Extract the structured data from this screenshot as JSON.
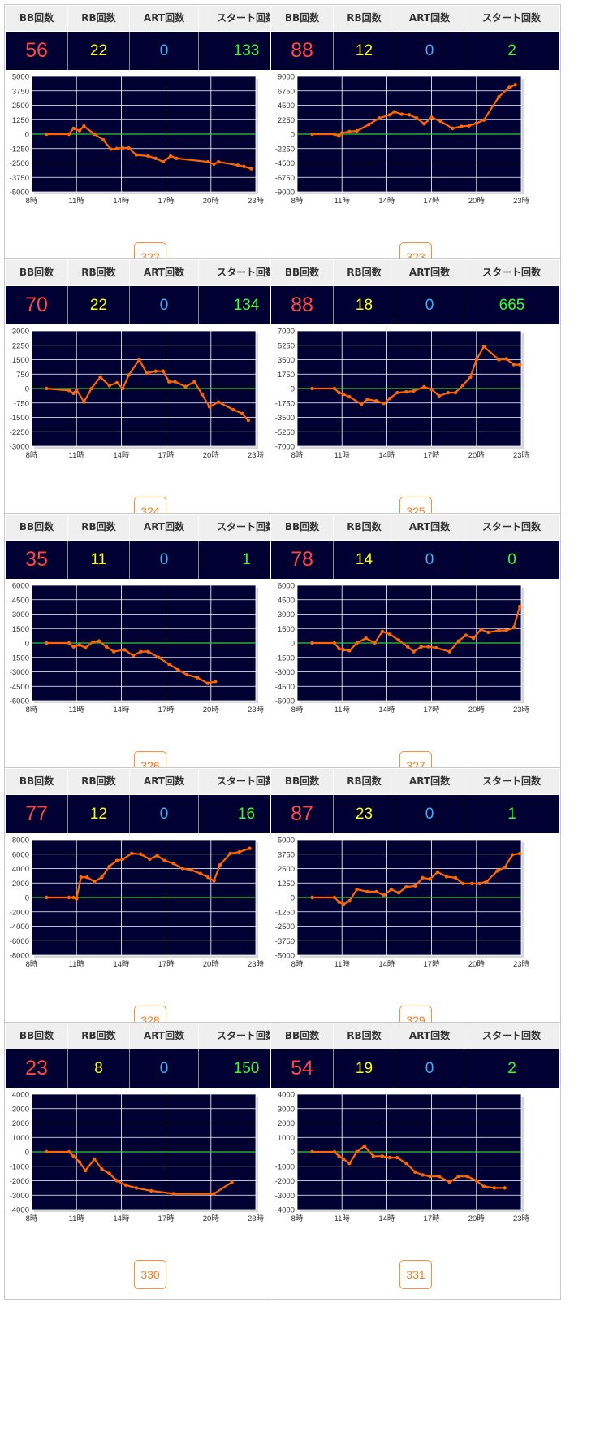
{
  "headers": {
    "bb": "BB回数",
    "rb": "RB回数",
    "art": "ART回数",
    "start": "スタート回数"
  },
  "colors": {
    "bb": "#ff4747",
    "rb": "#ffff00",
    "art": "#33b5ff",
    "start": "#33ff33",
    "line": "#ff6600",
    "zero_line": "#33cc33",
    "plot_bg": "#000033",
    "button": "#ff7a1a"
  },
  "x_ticks": [
    "8時",
    "11時",
    "14時",
    "17時",
    "20時",
    "23時"
  ],
  "chart_data": [
    {
      "type": "line",
      "machine": "322",
      "bb": "56",
      "rb": "22",
      "art": "0",
      "start": "133",
      "ylim": [
        -5000,
        5000
      ],
      "yticks": [
        5000,
        3750,
        2500,
        1250,
        0,
        -1250,
        -2500,
        -3750,
        -5000
      ],
      "x": [
        9,
        10.5,
        10.8,
        11.2,
        11.5,
        12.2,
        12.8,
        13.3,
        13.7,
        14.1,
        14.5,
        15,
        15.8,
        16.3,
        16.8,
        17.3,
        17.7,
        19.8,
        20.2,
        20.5,
        21.8,
        22.2,
        22.7
      ],
      "y": [
        0,
        0,
        500,
        300,
        700,
        0,
        -500,
        -1300,
        -1250,
        -1200,
        -1200,
        -1800,
        -1900,
        -2100,
        -2400,
        -1900,
        -2100,
        -2400,
        -2600,
        -2400,
        -2700,
        -2800,
        -3000
      ]
    },
    {
      "type": "line",
      "machine": "323",
      "bb": "88",
      "rb": "12",
      "art": "0",
      "start": "2",
      "ylim": [
        -9000,
        9000
      ],
      "yticks": [
        9000,
        6750,
        4500,
        2250,
        0,
        -2250,
        -4500,
        -6750,
        -9000
      ],
      "x": [
        9,
        10.5,
        10.8,
        11,
        11.5,
        12,
        12.8,
        13.5,
        14.2,
        14.5,
        15,
        15.5,
        16,
        16.5,
        17,
        17.6,
        18.4,
        19,
        19.5,
        20,
        20.5,
        21.5,
        22.2,
        22.6
      ],
      "y": [
        0,
        0,
        -300,
        200,
        400,
        500,
        1500,
        2500,
        3000,
        3500,
        3100,
        3000,
        2500,
        1600,
        2600,
        2000,
        900,
        1200,
        1300,
        1700,
        2200,
        5800,
        7300,
        7700
      ]
    },
    {
      "type": "line",
      "machine": "324",
      "bb": "70",
      "rb": "22",
      "art": "0",
      "start": "134",
      "ylim": [
        -3000,
        3000
      ],
      "yticks": [
        3000,
        2250,
        1500,
        750,
        0,
        -750,
        -1500,
        -2250,
        -3000
      ],
      "x": [
        9,
        10.5,
        10.8,
        11,
        11.5,
        12,
        12.6,
        13.2,
        13.7,
        14.1,
        14.5,
        15.2,
        15.7,
        16.3,
        16.8,
        17.2,
        17.6,
        18.3,
        18.9,
        19.4,
        19.9,
        20.5,
        21.5,
        22.1,
        22.5
      ],
      "y": [
        0,
        -100,
        -250,
        -50,
        -700,
        0,
        600,
        150,
        300,
        0,
        700,
        1500,
        800,
        900,
        900,
        350,
        350,
        100,
        350,
        -300,
        -950,
        -700,
        -1100,
        -1300,
        -1650
      ]
    },
    {
      "type": "line",
      "machine": "325",
      "bb": "88",
      "rb": "18",
      "art": "0",
      "start": "665",
      "ylim": [
        -7000,
        7000
      ],
      "yticks": [
        7000,
        5250,
        3500,
        1750,
        0,
        -1750,
        -3500,
        -5250,
        -7000
      ],
      "x": [
        9,
        10.5,
        10.8,
        11.1,
        11.5,
        12.3,
        12.7,
        13.3,
        13.8,
        14.2,
        14.7,
        15.3,
        15.8,
        16.5,
        17,
        17.5,
        18.1,
        18.6,
        19.1,
        19.6,
        20,
        20.5,
        21.5,
        22,
        22.5,
        22.9
      ],
      "y": [
        0,
        0,
        -500,
        -700,
        -1000,
        -1900,
        -1300,
        -1500,
        -1800,
        -1200,
        -500,
        -400,
        -300,
        200,
        -100,
        -900,
        -500,
        -500,
        400,
        1400,
        3500,
        5100,
        3500,
        3600,
        2900,
        2900
      ]
    },
    {
      "type": "line",
      "machine": "326",
      "bb": "35",
      "rb": "11",
      "art": "0",
      "start": "1",
      "ylim": [
        -6000,
        6000
      ],
      "yticks": [
        6000,
        4500,
        3000,
        1500,
        0,
        -1500,
        -3000,
        -4500,
        -6000
      ],
      "x": [
        9,
        10.5,
        10.8,
        11.2,
        11.6,
        12.1,
        12.5,
        13,
        13.5,
        14.2,
        14.8,
        15.3,
        15.8,
        16.5,
        17.2,
        17.8,
        18.4,
        19.1,
        19.8,
        20.3
      ],
      "y": [
        0,
        0,
        -400,
        -200,
        -500,
        100,
        200,
        -400,
        -900,
        -700,
        -1300,
        -900,
        -900,
        -1500,
        -2200,
        -2800,
        -3300,
        -3600,
        -4200,
        -4000
      ]
    },
    {
      "type": "line",
      "machine": "327",
      "bb": "78",
      "rb": "14",
      "art": "0",
      "start": "0",
      "ylim": [
        -6000,
        6000
      ],
      "yticks": [
        6000,
        4500,
        3000,
        1500,
        0,
        -1500,
        -3000,
        -4500,
        -6000
      ],
      "x": [
        9,
        10.5,
        10.8,
        11.1,
        11.5,
        12,
        12.6,
        13.2,
        13.7,
        14.2,
        14.8,
        15.4,
        15.8,
        16.3,
        16.8,
        17.3,
        18.2,
        18.8,
        19.3,
        19.8,
        20.3,
        20.8,
        21.5,
        22,
        22.5,
        22.9
      ],
      "y": [
        0,
        0,
        -600,
        -700,
        -800,
        0,
        500,
        0,
        1200,
        900,
        300,
        -400,
        -900,
        -400,
        -400,
        -500,
        -900,
        200,
        800,
        500,
        1400,
        1100,
        1300,
        1300,
        1600,
        3800
      ]
    },
    {
      "type": "line",
      "machine": "328",
      "bb": "77",
      "rb": "12",
      "art": "0",
      "start": "16",
      "ylim": [
        -8000,
        8000
      ],
      "yticks": [
        8000,
        6000,
        4000,
        2000,
        0,
        -2000,
        -4000,
        -6000,
        -8000
      ],
      "x": [
        9,
        10.5,
        10.8,
        11,
        11.3,
        11.7,
        12.2,
        12.7,
        13.2,
        13.7,
        14.1,
        14.7,
        15.3,
        15.9,
        16.4,
        16.9,
        17.5,
        18.1,
        18.7,
        19.3,
        19.8,
        20.2,
        20.6,
        21.3,
        21.9,
        22.6
      ],
      "y": [
        0,
        0,
        0,
        -200,
        2800,
        2800,
        2200,
        2800,
        4300,
        5100,
        5300,
        6100,
        6000,
        5300,
        5800,
        5100,
        4700,
        4000,
        3800,
        3300,
        2800,
        2300,
        4500,
        6100,
        6300,
        6800
      ]
    },
    {
      "type": "line",
      "machine": "329",
      "bb": "87",
      "rb": "23",
      "art": "0",
      "start": "1",
      "ylim": [
        -5000,
        5000
      ],
      "yticks": [
        5000,
        3750,
        2500,
        1250,
        0,
        -1250,
        -2500,
        -3750,
        -5000
      ],
      "x": [
        9,
        10.5,
        10.8,
        11.1,
        11.5,
        12,
        12.7,
        13.3,
        13.8,
        14.3,
        14.8,
        15.3,
        15.9,
        16.4,
        16.9,
        17.4,
        18,
        18.6,
        19.1,
        19.7,
        20.2,
        20.7,
        21.4,
        21.9,
        22.4,
        22.9
      ],
      "y": [
        0,
        0,
        -400,
        -600,
        -300,
        700,
        500,
        500,
        200,
        700,
        400,
        900,
        1000,
        1700,
        1600,
        2200,
        1800,
        1700,
        1200,
        1200,
        1200,
        1400,
        2300,
        2600,
        3700,
        3800
      ]
    },
    {
      "type": "line",
      "machine": "330",
      "bb": "23",
      "rb": "8",
      "art": "0",
      "start": "150",
      "ylim": [
        -4000,
        4000
      ],
      "yticks": [
        4000,
        3000,
        2000,
        1000,
        0,
        -1000,
        -2000,
        -3000,
        -4000
      ],
      "x": [
        9,
        10.5,
        10.8,
        11.2,
        11.6,
        12.2,
        12.7,
        13.2,
        13.7,
        14.3,
        15,
        16,
        17.5,
        20.2,
        21.4
      ],
      "y": [
        0,
        0,
        -300,
        -700,
        -1300,
        -500,
        -1200,
        -1500,
        -2000,
        -2300,
        -2500,
        -2700,
        -2900,
        -2900,
        -2100
      ]
    },
    {
      "type": "line",
      "machine": "331",
      "bb": "54",
      "rb": "19",
      "art": "0",
      "start": "2",
      "ylim": [
        -4000,
        4000
      ],
      "yticks": [
        4000,
        3000,
        2000,
        1000,
        0,
        -1000,
        -2000,
        -3000,
        -4000
      ],
      "x": [
        9,
        10.5,
        10.8,
        11.1,
        11.5,
        12,
        12.5,
        13.1,
        13.7,
        14.2,
        14.7,
        15.3,
        15.9,
        16.4,
        16.9,
        17.5,
        18.2,
        18.8,
        19.4,
        20,
        20.5,
        21.2,
        21.9
      ],
      "y": [
        0,
        0,
        -300,
        -500,
        -800,
        0,
        400,
        -300,
        -300,
        -400,
        -400,
        -800,
        -1400,
        -1600,
        -1700,
        -1700,
        -2100,
        -1700,
        -1700,
        -2000,
        -2400,
        -2500,
        -2500
      ]
    }
  ]
}
